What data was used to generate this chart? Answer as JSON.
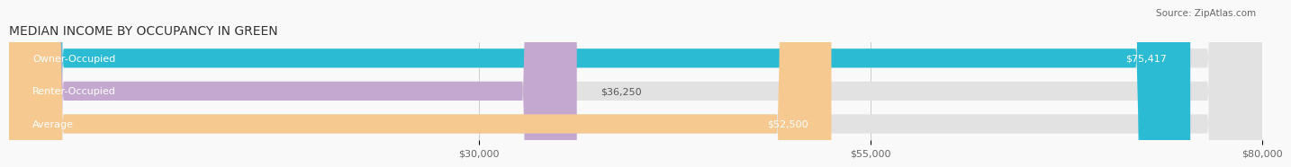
{
  "title": "MEDIAN INCOME BY OCCUPANCY IN GREEN",
  "source": "Source: ZipAtlas.com",
  "categories": [
    "Owner-Occupied",
    "Renter-Occupied",
    "Average"
  ],
  "values": [
    75417,
    36250,
    52500
  ],
  "labels": [
    "$75,417",
    "$36,250",
    "$52,500"
  ],
  "bar_colors": [
    "#2bbcd4",
    "#c4a8d0",
    "#f5c990"
  ],
  "xlim": [
    0,
    80000
  ],
  "xticks": [
    30000,
    55000,
    80000
  ],
  "xtick_labels": [
    "$30,000",
    "$55,000",
    "$80,000"
  ],
  "title_fontsize": 10,
  "label_fontsize": 8,
  "tick_fontsize": 8,
  "bar_height": 0.58
}
